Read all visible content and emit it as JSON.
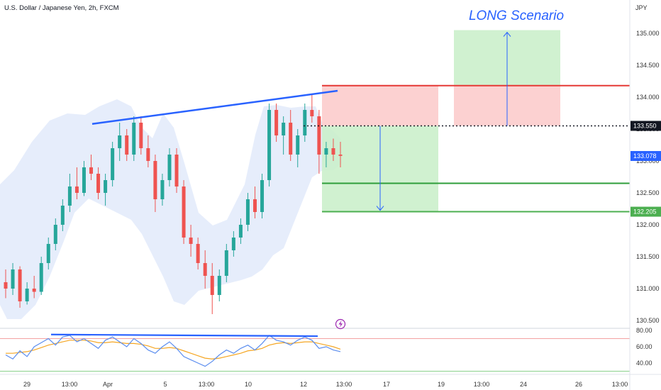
{
  "header": {
    "symbol_title": "U.S. Dollar / Japanese Yen, 2h, FXCM",
    "currency": "JPY"
  },
  "annotation": {
    "scenario_label": "LONG Scenario"
  },
  "price_axis": {
    "ticks": [
      "135.000",
      "134.500",
      "134.000",
      "133.500",
      "133.000",
      "132.500",
      "132.000",
      "131.500",
      "131.000",
      "130.500"
    ],
    "badges": [
      {
        "label": "133.550",
        "bg": "#131722",
        "fg": "#ffffff"
      },
      {
        "label": "133.078",
        "bg": "#2962ff",
        "fg": "#ffffff"
      },
      {
        "label": "132.205",
        "bg": "#4caf50",
        "fg": "#ffffff"
      }
    ]
  },
  "rsi_axis": {
    "ticks": [
      "80.00",
      "60.00",
      "40.00"
    ]
  },
  "time_axis": {
    "ticks": [
      "29",
      "13:00",
      "Apr",
      "5",
      "13:00",
      "10",
      "12",
      "13:00",
      "17",
      "19",
      "13:00",
      "24",
      "26",
      "13:00"
    ]
  },
  "colors": {
    "bull": "#26a69a",
    "bear": "#ef5350",
    "trendline": "#2962ff",
    "stop_line": "#e53935",
    "target_line": "#2e9e3a",
    "target_zone": "#c8efc8",
    "stop_zone": "#fbc9c9",
    "band_fill": "#e3ebfb",
    "rsi_line": "#5b8def",
    "rsi_ma": "#f5a623",
    "entry_line": "#131722",
    "flash_icon": "#9c27b0"
  },
  "chart_data": {
    "type": "candlestick",
    "title": "U.S. Dollar / Japanese Yen, 2h, FXCM",
    "price_range": [
      130.3,
      135.3
    ],
    "levels": {
      "entry": 133.55,
      "current": 133.078,
      "stop": 134.18,
      "target_mid": 132.65,
      "target_low": 132.205,
      "long_target_top": 135.05
    },
    "trendline_upper": {
      "from": 133.58,
      "to": 134.1
    },
    "rsi": {
      "range": [
        30,
        85
      ],
      "levels": [
        70,
        30
      ],
      "divergence": {
        "from": 75,
        "to": 73
      }
    },
    "candles_ohlc_approx": [
      [
        131.1,
        131.3,
        130.85,
        131.0
      ],
      [
        131.0,
        131.4,
        130.9,
        131.3
      ],
      [
        131.3,
        131.35,
        130.7,
        130.8
      ],
      [
        130.8,
        131.1,
        130.75,
        131.0
      ],
      [
        131.0,
        131.2,
        130.85,
        130.95
      ],
      [
        130.95,
        131.5,
        130.9,
        131.4
      ],
      [
        131.4,
        131.8,
        131.3,
        131.7
      ],
      [
        131.7,
        132.1,
        131.6,
        132.0
      ],
      [
        132.0,
        132.4,
        131.9,
        132.3
      ],
      [
        132.3,
        132.8,
        132.2,
        132.6
      ],
      [
        132.6,
        132.9,
        132.4,
        132.5
      ],
      [
        132.5,
        133.0,
        132.45,
        132.9
      ],
      [
        132.9,
        133.1,
        132.7,
        132.8
      ],
      [
        132.8,
        132.9,
        132.4,
        132.5
      ],
      [
        132.5,
        132.8,
        132.3,
        132.7
      ],
      [
        132.7,
        133.3,
        132.6,
        133.2
      ],
      [
        133.2,
        133.6,
        133.0,
        133.4
      ],
      [
        133.4,
        133.5,
        133.0,
        133.1
      ],
      [
        133.1,
        133.7,
        133.0,
        133.6
      ],
      [
        133.6,
        133.7,
        133.1,
        133.2
      ],
      [
        133.2,
        133.4,
        132.9,
        133.0
      ],
      [
        133.0,
        133.1,
        132.2,
        132.4
      ],
      [
        132.4,
        132.8,
        132.3,
        132.7
      ],
      [
        132.7,
        133.2,
        132.6,
        133.1
      ],
      [
        133.1,
        133.2,
        132.5,
        132.6
      ],
      [
        132.6,
        132.7,
        131.7,
        131.8
      ],
      [
        131.8,
        132.0,
        131.5,
        131.7
      ],
      [
        131.7,
        131.8,
        131.3,
        131.4
      ],
      [
        131.4,
        131.6,
        131.0,
        131.2
      ],
      [
        131.2,
        131.4,
        130.6,
        130.9
      ],
      [
        130.9,
        131.3,
        130.8,
        131.2
      ],
      [
        131.2,
        131.7,
        131.1,
        131.6
      ],
      [
        131.6,
        131.9,
        131.5,
        131.8
      ],
      [
        131.8,
        132.1,
        131.7,
        132.0
      ],
      [
        132.0,
        132.5,
        131.9,
        132.4
      ],
      [
        132.4,
        132.6,
        132.1,
        132.2
      ],
      [
        132.2,
        132.8,
        132.1,
        132.7
      ],
      [
        132.7,
        133.9,
        132.6,
        133.8
      ],
      [
        133.8,
        133.9,
        133.3,
        133.4
      ],
      [
        133.4,
        133.7,
        133.1,
        133.6
      ],
      [
        133.6,
        133.8,
        133.0,
        133.1
      ],
      [
        133.1,
        133.5,
        132.9,
        133.4
      ],
      [
        133.4,
        133.9,
        133.3,
        133.8
      ],
      [
        133.8,
        134.05,
        133.6,
        133.7
      ],
      [
        133.7,
        133.8,
        132.8,
        133.1
      ],
      [
        133.1,
        133.3,
        132.9,
        133.2
      ],
      [
        133.2,
        133.35,
        133.0,
        133.1
      ],
      [
        133.1,
        133.3,
        132.9,
        133.08
      ]
    ]
  }
}
